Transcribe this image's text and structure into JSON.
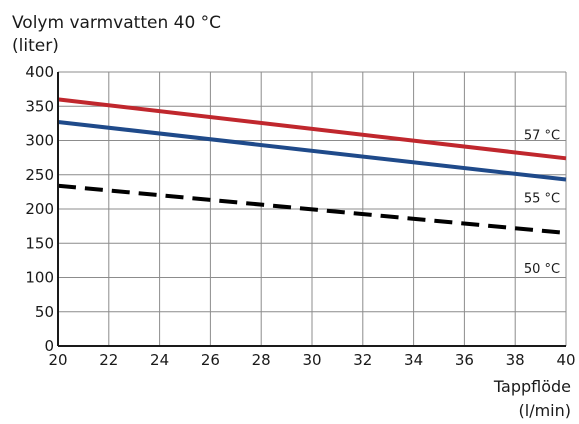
{
  "chart_data": {
    "type": "line",
    "title_lines": [
      "Volym varmvatten 40 °C",
      "(liter)"
    ],
    "xlabel_lines": [
      "Tappflöde",
      "(l/min)"
    ],
    "xlim": [
      20,
      40
    ],
    "ylim": [
      0,
      400
    ],
    "x_ticks": [
      20,
      22,
      24,
      26,
      28,
      30,
      32,
      34,
      36,
      38,
      40
    ],
    "y_ticks": [
      0,
      50,
      100,
      150,
      200,
      250,
      300,
      350,
      400
    ],
    "grid": true,
    "series": [
      {
        "label": "57 °C",
        "color": "#c0272d",
        "dashed": false,
        "x": [
          20,
          40
        ],
        "y": [
          360,
          274
        ]
      },
      {
        "label": "55 °C",
        "color": "#1f4a8a",
        "dashed": false,
        "x": [
          20,
          40
        ],
        "y": [
          327,
          243
        ]
      },
      {
        "label": "50 °C",
        "color": "#000000",
        "dashed": true,
        "x": [
          20,
          40
        ],
        "y": [
          234,
          165
        ]
      }
    ]
  }
}
